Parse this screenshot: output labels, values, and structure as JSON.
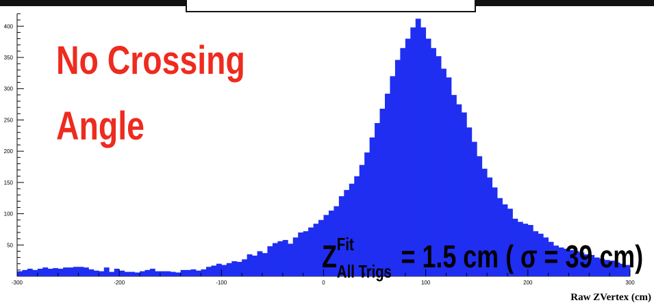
{
  "chart_data": {
    "type": "bar",
    "xlabel": "Raw ZVertex (cm)",
    "ylabel": "",
    "xlim": [
      -300,
      300
    ],
    "ylim": [
      0,
      420
    ],
    "bin_width": 5,
    "x_start": -300,
    "x_ticks": [
      -300,
      -200,
      -100,
      0,
      100,
      200,
      300
    ],
    "y_ticks": [
      50,
      100,
      150,
      200,
      250,
      300,
      350,
      400
    ],
    "bar_color": "#1f2ef0",
    "values": [
      8,
      10,
      12,
      10,
      12,
      14,
      12,
      13,
      12,
      14,
      14,
      15,
      15,
      14,
      11,
      9,
      8,
      14,
      7,
      12,
      9,
      7,
      7,
      6,
      8,
      10,
      12,
      8,
      8,
      8,
      7,
      6,
      10,
      10,
      11,
      9,
      11,
      15,
      17,
      20,
      18,
      21,
      24,
      23,
      27,
      35,
      33,
      40,
      37,
      48,
      53,
      56,
      58,
      52,
      62,
      70,
      72,
      78,
      84,
      90,
      98,
      105,
      112,
      128,
      138,
      148,
      160,
      178,
      198,
      222,
      245,
      268,
      292,
      320,
      346,
      365,
      380,
      398,
      412,
      398,
      380,
      365,
      352,
      332,
      318,
      290,
      275,
      262,
      238,
      215,
      192,
      172,
      158,
      142,
      125,
      115,
      108,
      92,
      87,
      84,
      82,
      72,
      68,
      62,
      55,
      49,
      46,
      44,
      42,
      40,
      38,
      35,
      34,
      30,
      28,
      26,
      25,
      22,
      20,
      18
    ],
    "annotations": [
      "No Crossing",
      "Angle"
    ],
    "annotation_fit": {
      "main": "Z",
      "sup": "Fit",
      "sub": "All Trigs",
      "text": "= 1.5 cm ( σ = 39 cm)"
    }
  }
}
